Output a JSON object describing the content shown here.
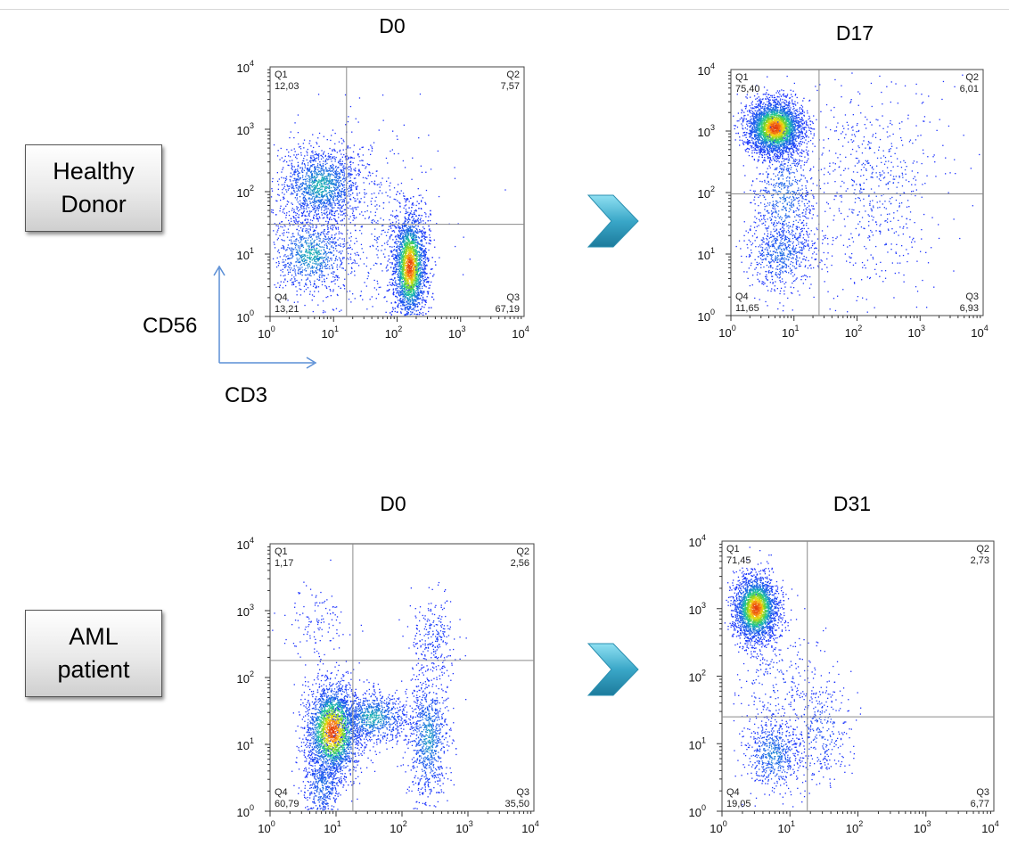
{
  "groups": [
    {
      "label_line1": "Healthy",
      "label_line2": "Donor"
    },
    {
      "label_line1": "AML",
      "label_line2": "patient"
    }
  ],
  "axis_captions": {
    "x": "CD3",
    "y": "CD56"
  },
  "arrow_color": "#3aa7c8",
  "colors": {
    "low": "#1a2cff",
    "mid": "#19c6a0",
    "high": "#e23a10"
  },
  "chart_data": [
    {
      "type": "scatter",
      "title": "D0",
      "group": "Healthy Donor",
      "x_scale": "log",
      "y_scale": "log",
      "xlim": [
        1,
        10000
      ],
      "ylim": [
        1,
        10000
      ],
      "x_ticks": [
        "10^0",
        "10^1",
        "10^2",
        "10^3",
        "10^4"
      ],
      "y_ticks": [
        "10^0",
        "10^1",
        "10^2",
        "10^3",
        "10^4"
      ],
      "gate": {
        "x": 16,
        "y": 30
      },
      "quadrants": {
        "Q1": "12,03",
        "Q2": "7,57",
        "Q3": "67,19",
        "Q4": "13,21"
      },
      "populations": [
        {
          "cx": 0.8,
          "cy": 2.1,
          "sx": 0.32,
          "sy": 0.3,
          "n": 1500,
          "peak": 0.45
        },
        {
          "cx": 0.65,
          "cy": 1.0,
          "sx": 0.3,
          "sy": 0.3,
          "n": 900,
          "peak": 0.45
        },
        {
          "cx": 2.2,
          "cy": 0.8,
          "sx": 0.13,
          "sy": 0.42,
          "n": 3200,
          "peak": 1.0
        },
        {
          "cx": 1.6,
          "cy": 1.3,
          "sx": 0.55,
          "sy": 0.9,
          "n": 450,
          "peak": 0.1
        }
      ]
    },
    {
      "type": "scatter",
      "title": "D17",
      "group": "Healthy Donor",
      "x_scale": "log",
      "y_scale": "log",
      "xlim": [
        1,
        10000
      ],
      "ylim": [
        1,
        10000
      ],
      "x_ticks": [
        "10^0",
        "10^1",
        "10^2",
        "10^3",
        "10^4"
      ],
      "y_ticks": [
        "10^0",
        "10^1",
        "10^2",
        "10^3",
        "10^4"
      ],
      "gate": {
        "x": 25,
        "y": 95
      },
      "quadrants": {
        "Q1": "75,40",
        "Q2": "6,01",
        "Q3": "6,93",
        "Q4": "11,65"
      },
      "populations": [
        {
          "cx": 0.7,
          "cy": 3.05,
          "sx": 0.22,
          "sy": 0.22,
          "n": 3200,
          "peak": 1.0
        },
        {
          "cx": 0.85,
          "cy": 1.9,
          "sx": 0.25,
          "sy": 0.55,
          "n": 700,
          "peak": 0.3
        },
        {
          "cx": 0.8,
          "cy": 1.0,
          "sx": 0.28,
          "sy": 0.3,
          "n": 550,
          "peak": 0.3
        },
        {
          "cx": 2.3,
          "cy": 2.1,
          "sx": 0.55,
          "sy": 0.85,
          "n": 650,
          "peak": 0.1
        }
      ]
    },
    {
      "type": "scatter",
      "title": "D0",
      "group": "AML patient",
      "x_scale": "log",
      "y_scale": "log",
      "xlim": [
        1,
        10000
      ],
      "ylim": [
        1,
        10000
      ],
      "x_ticks": [
        "10^0",
        "10^1",
        "10^2",
        "10^3",
        "10^4"
      ],
      "y_ticks": [
        "10^0",
        "10^1",
        "10^2",
        "10^3",
        "10^4"
      ],
      "gate": {
        "x": 18,
        "y": 180
      },
      "quadrants": {
        "Q1": "1,17",
        "Q2": "2,56",
        "Q3": "35,50",
        "Q4": "60,79"
      },
      "populations": [
        {
          "cx": 0.95,
          "cy": 1.2,
          "sx": 0.2,
          "sy": 0.35,
          "n": 2600,
          "peak": 1.0
        },
        {
          "cx": 1.55,
          "cy": 1.4,
          "sx": 0.28,
          "sy": 0.2,
          "n": 900,
          "peak": 0.45
        },
        {
          "cx": 2.4,
          "cy": 1.1,
          "sx": 0.15,
          "sy": 0.45,
          "n": 900,
          "peak": 0.4
        },
        {
          "cx": 0.8,
          "cy": 0.4,
          "sx": 0.15,
          "sy": 0.3,
          "n": 500,
          "peak": 0.3
        },
        {
          "cx": 2.5,
          "cy": 2.6,
          "sx": 0.18,
          "sy": 0.3,
          "n": 250,
          "peak": 0.1
        },
        {
          "cx": 0.7,
          "cy": 2.8,
          "sx": 0.25,
          "sy": 0.25,
          "n": 120,
          "peak": 0.05
        }
      ]
    },
    {
      "type": "scatter",
      "title": "D31",
      "group": "AML patient",
      "x_scale": "log",
      "y_scale": "log",
      "xlim": [
        1,
        10000
      ],
      "ylim": [
        1,
        10000
      ],
      "x_ticks": [
        "10^0",
        "10^1",
        "10^2",
        "10^3",
        "10^4"
      ],
      "y_ticks": [
        "10^0",
        "10^1",
        "10^2",
        "10^3",
        "10^4"
      ],
      "gate": {
        "x": 18,
        "y": 25
      },
      "quadrants": {
        "Q1": "71,45",
        "Q2": "2,73",
        "Q3": "6,77",
        "Q4": "19,05"
      },
      "populations": [
        {
          "cx": 0.5,
          "cy": 3.0,
          "sx": 0.16,
          "sy": 0.24,
          "n": 2600,
          "peak": 1.0
        },
        {
          "cx": 0.75,
          "cy": 0.85,
          "sx": 0.2,
          "sy": 0.28,
          "n": 600,
          "peak": 0.35
        },
        {
          "cx": 1.45,
          "cy": 1.2,
          "sx": 0.22,
          "sy": 0.4,
          "n": 350,
          "peak": 0.15
        },
        {
          "cx": 0.8,
          "cy": 1.9,
          "sx": 0.3,
          "sy": 0.5,
          "n": 250,
          "peak": 0.1
        }
      ]
    }
  ]
}
